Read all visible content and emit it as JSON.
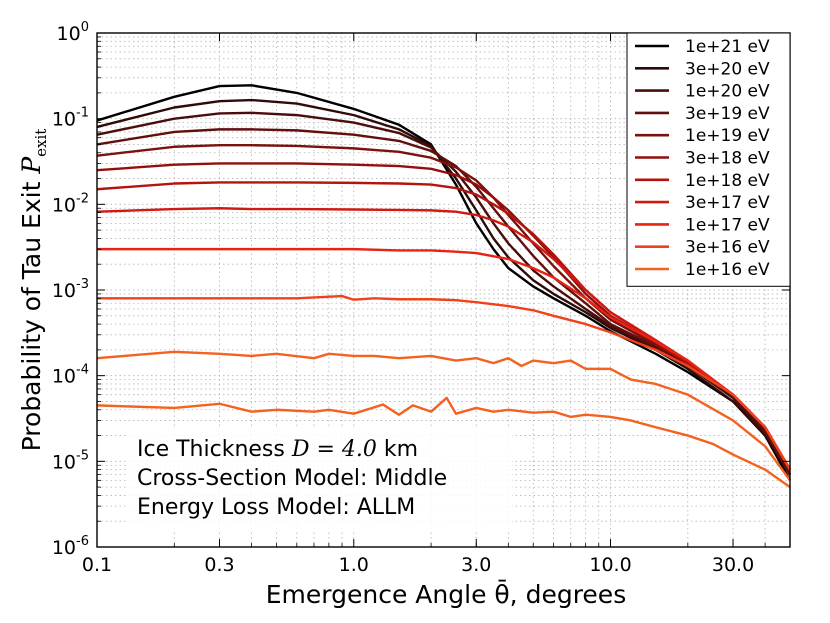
{
  "chart_data": {
    "type": "line",
    "title": "",
    "xlabel": "Emergence Angle θ̄, degrees",
    "ylabel": "Probability of Tau Exit P_exit",
    "ylabel_main": "Probability of Tau Exit ",
    "ylabel_symbol": "P",
    "ylabel_subscript": "exit",
    "xscale": "log",
    "yscale": "log",
    "xlim": [
      0.1,
      50
    ],
    "ylim": [
      1e-06,
      1
    ],
    "grid": true,
    "legend_position": "top-right",
    "x_ticks": [
      {
        "value": 0.1,
        "label": "0.1"
      },
      {
        "value": 0.3,
        "label": "0.3"
      },
      {
        "value": 1.0,
        "label": "1.0"
      },
      {
        "value": 3.0,
        "label": "3.0"
      },
      {
        "value": 10.0,
        "label": "10.0"
      },
      {
        "value": 30.0,
        "label": "30.0"
      }
    ],
    "y_ticks": [
      {
        "value": 1,
        "base": "10",
        "exp": "0"
      },
      {
        "value": 0.1,
        "base": "10",
        "exp": "-1"
      },
      {
        "value": 0.01,
        "base": "10",
        "exp": "-2"
      },
      {
        "value": 0.001,
        "base": "10",
        "exp": "-3"
      },
      {
        "value": 0.0001,
        "base": "10",
        "exp": "-4"
      },
      {
        "value": 1e-05,
        "base": "10",
        "exp": "-5"
      },
      {
        "value": 1e-06,
        "base": "10",
        "exp": "-6"
      }
    ],
    "annotation": {
      "line1_prefix": "Ice Thickness ",
      "line1_math": "D = 4.0",
      "line1_suffix": " km",
      "line2": "Cross-Section Model: Middle",
      "line3": "Energy Loss Model: ALLM"
    },
    "series": [
      {
        "name": "1e+21 eV",
        "color": "#000000",
        "x": [
          0.1,
          0.2,
          0.3,
          0.4,
          0.6,
          1.0,
          1.5,
          2.0,
          2.5,
          3.0,
          3.5,
          4.0,
          5.0,
          6.0,
          8.0,
          10.0,
          15.0,
          20.0,
          30.0,
          40.0,
          50.0
        ],
        "y": [
          0.095,
          0.18,
          0.24,
          0.245,
          0.2,
          0.13,
          0.085,
          0.05,
          0.017,
          0.006,
          0.003,
          0.0018,
          0.0011,
          0.0008,
          0.0005,
          0.00033,
          0.00018,
          0.00011,
          5e-05,
          2e-05,
          6e-06
        ]
      },
      {
        "name": "3e+20 eV",
        "color": "#2e0a08",
        "x": [
          0.1,
          0.2,
          0.3,
          0.4,
          0.6,
          1.0,
          1.5,
          2.0,
          2.5,
          3.0,
          3.5,
          4.0,
          5.0,
          6.0,
          8.0,
          10.0,
          15.0,
          20.0,
          30.0,
          40.0,
          50.0
        ],
        "y": [
          0.08,
          0.135,
          0.16,
          0.165,
          0.15,
          0.11,
          0.075,
          0.048,
          0.02,
          0.0085,
          0.004,
          0.0024,
          0.0013,
          0.0009,
          0.00055,
          0.00036,
          0.0002,
          0.00012,
          5e-05,
          2e-05,
          7e-06
        ]
      },
      {
        "name": "1e+20 eV",
        "color": "#4a0d0b",
        "x": [
          0.1,
          0.2,
          0.3,
          0.4,
          0.6,
          1.0,
          1.5,
          2.0,
          2.5,
          3.0,
          3.5,
          4.0,
          5.0,
          6.0,
          8.0,
          10.0,
          15.0,
          20.0,
          30.0,
          40.0,
          50.0
        ],
        "y": [
          0.065,
          0.1,
          0.115,
          0.117,
          0.11,
          0.09,
          0.068,
          0.046,
          0.024,
          0.012,
          0.006,
          0.0035,
          0.0017,
          0.0011,
          0.0006,
          0.00038,
          0.00021,
          0.00013,
          5.5e-05,
          2.2e-05,
          7e-06
        ]
      },
      {
        "name": "3e+19 eV",
        "color": "#610f0c",
        "x": [
          0.1,
          0.2,
          0.3,
          0.4,
          0.6,
          1.0,
          1.5,
          2.0,
          2.5,
          3.0,
          3.5,
          4.0,
          5.0,
          6.0,
          8.0,
          10.0,
          15.0,
          20.0,
          30.0,
          40.0,
          50.0
        ],
        "y": [
          0.05,
          0.07,
          0.075,
          0.075,
          0.073,
          0.065,
          0.055,
          0.042,
          0.028,
          0.016,
          0.009,
          0.0055,
          0.0025,
          0.0014,
          0.0007,
          0.0004,
          0.00022,
          0.00013,
          6e-05,
          2.3e-05,
          7e-06
        ]
      },
      {
        "name": "1e+19 eV",
        "color": "#7a120d",
        "x": [
          0.1,
          0.2,
          0.3,
          0.4,
          0.6,
          1.0,
          1.5,
          2.0,
          2.5,
          3.0,
          3.5,
          4.0,
          5.0,
          6.0,
          8.0,
          10.0,
          15.0,
          20.0,
          30.0,
          40.0,
          50.0
        ],
        "y": [
          0.037,
          0.047,
          0.049,
          0.049,
          0.048,
          0.045,
          0.041,
          0.035,
          0.027,
          0.019,
          0.012,
          0.0075,
          0.0035,
          0.0019,
          0.0008,
          0.00045,
          0.00023,
          0.00014,
          6e-05,
          2.5e-05,
          8e-06
        ]
      },
      {
        "name": "3e+18 eV",
        "color": "#940f0c",
        "x": [
          0.1,
          0.2,
          0.3,
          0.4,
          0.6,
          1.0,
          1.5,
          2.0,
          2.5,
          3.0,
          3.5,
          4.0,
          5.0,
          6.0,
          8.0,
          10.0,
          15.0,
          20.0,
          30.0,
          40.0,
          50.0
        ],
        "y": [
          0.025,
          0.029,
          0.03,
          0.03,
          0.03,
          0.029,
          0.028,
          0.026,
          0.022,
          0.017,
          0.012,
          0.0085,
          0.0043,
          0.0024,
          0.0009,
          0.0005,
          0.00024,
          0.00014,
          6e-05,
          2.5e-05,
          8e-06
        ]
      },
      {
        "name": "1e+18 eV",
        "color": "#b3140f",
        "x": [
          0.1,
          0.2,
          0.3,
          0.4,
          0.6,
          1.0,
          1.5,
          2.0,
          2.5,
          3.0,
          3.5,
          4.0,
          5.0,
          6.0,
          8.0,
          10.0,
          15.0,
          20.0,
          30.0,
          40.0,
          50.0
        ],
        "y": [
          0.015,
          0.0175,
          0.018,
          0.018,
          0.018,
          0.0178,
          0.0175,
          0.017,
          0.0155,
          0.013,
          0.01,
          0.0078,
          0.0045,
          0.0026,
          0.001,
          0.00055,
          0.00025,
          0.00014,
          6e-05,
          2.5e-05,
          8e-06
        ]
      },
      {
        "name": "3e+17 eV",
        "color": "#cf1a12",
        "x": [
          0.1,
          0.2,
          0.3,
          0.4,
          0.6,
          1.0,
          1.5,
          2.0,
          2.5,
          3.0,
          3.5,
          4.0,
          5.0,
          6.0,
          8.0,
          10.0,
          15.0,
          20.0,
          30.0,
          40.0,
          50.0
        ],
        "y": [
          0.0082,
          0.0088,
          0.009,
          0.0088,
          0.0088,
          0.0087,
          0.0086,
          0.0085,
          0.0082,
          0.0075,
          0.0065,
          0.0055,
          0.0036,
          0.0023,
          0.001,
          0.00055,
          0.00026,
          0.00015,
          6e-05,
          2.5e-05,
          8e-06
        ]
      },
      {
        "name": "1e+17 eV",
        "color": "#e82314",
        "x": [
          0.1,
          0.2,
          0.3,
          0.4,
          0.6,
          1.0,
          1.5,
          2.0,
          2.5,
          3.0,
          4.0,
          5.0,
          6.0,
          8.0,
          10.0,
          15.0,
          20.0,
          30.0,
          40.0,
          50.0
        ],
        "y": [
          0.003,
          0.003,
          0.003,
          0.003,
          0.003,
          0.003,
          0.0029,
          0.0029,
          0.0028,
          0.0027,
          0.0023,
          0.0018,
          0.0014,
          0.0008,
          0.00048,
          0.00025,
          0.00015,
          6e-05,
          2.5e-05,
          8e-06
        ]
      },
      {
        "name": "3e+16 eV",
        "color": "#f0411a",
        "x": [
          0.1,
          0.2,
          0.3,
          0.4,
          0.6,
          0.9,
          1.0,
          1.2,
          1.5,
          2.0,
          2.5,
          3.0,
          4.0,
          5.0,
          6.0,
          8.0,
          10.0,
          15.0,
          20.0,
          30.0,
          40.0,
          50.0
        ],
        "y": [
          0.0008,
          0.0008,
          0.0008,
          0.0008,
          0.0008,
          0.00085,
          0.00077,
          0.0008,
          0.00078,
          0.00078,
          0.00076,
          0.00072,
          0.00065,
          0.00058,
          0.0005,
          0.0004,
          0.00032,
          0.0002,
          0.00013,
          6e-05,
          2.5e-05,
          8e-06
        ]
      },
      {
        "name": "1e+16 eV",
        "color": "#f4621f",
        "x": [
          0.1,
          0.2,
          0.3,
          0.4,
          0.5,
          0.7,
          0.8,
          1.0,
          1.2,
          1.5,
          2.0,
          2.5,
          3.0,
          3.5,
          4.0,
          4.5,
          5.0,
          6.0,
          7.0,
          8.0,
          10.0,
          12.0,
          15.0,
          20.0,
          30.0,
          40.0,
          50.0
        ],
        "y": [
          0.00016,
          0.00019,
          0.00018,
          0.00017,
          0.00018,
          0.00016,
          0.00018,
          0.00017,
          0.00017,
          0.00016,
          0.00017,
          0.00015,
          0.00016,
          0.00014,
          0.00016,
          0.00013,
          0.00015,
          0.00014,
          0.00015,
          0.00012,
          0.00012,
          9e-05,
          8e-05,
          6e-05,
          3e-05,
          1.5e-05,
          6e-06
        ]
      },
      {
        "name": "",
        "color": "#f4621f",
        "x": [
          0.1,
          0.2,
          0.3,
          0.4,
          0.5,
          0.7,
          0.8,
          1.0,
          1.3,
          1.5,
          1.7,
          2.0,
          2.3,
          2.5,
          3.0,
          3.5,
          4.0,
          5.0,
          6.0,
          7.0,
          8.0,
          9.0,
          10.0,
          12.0,
          15.0,
          20.0,
          25.0,
          30.0,
          40.0,
          50.0
        ],
        "y": [
          4.5e-05,
          4.2e-05,
          4.7e-05,
          3.8e-05,
          4e-05,
          3.8e-05,
          4e-05,
          3.6e-05,
          4.6e-05,
          3.5e-05,
          4.5e-05,
          3.8e-05,
          5.5e-05,
          3.6e-05,
          4.2e-05,
          3.8e-05,
          4e-05,
          3.7e-05,
          3.8e-05,
          3.3e-05,
          3.5e-05,
          3.4e-05,
          3.3e-05,
          3e-05,
          2.5e-05,
          2e-05,
          1.6e-05,
          1.2e-05,
          8e-06,
          5e-06
        ]
      }
    ]
  }
}
